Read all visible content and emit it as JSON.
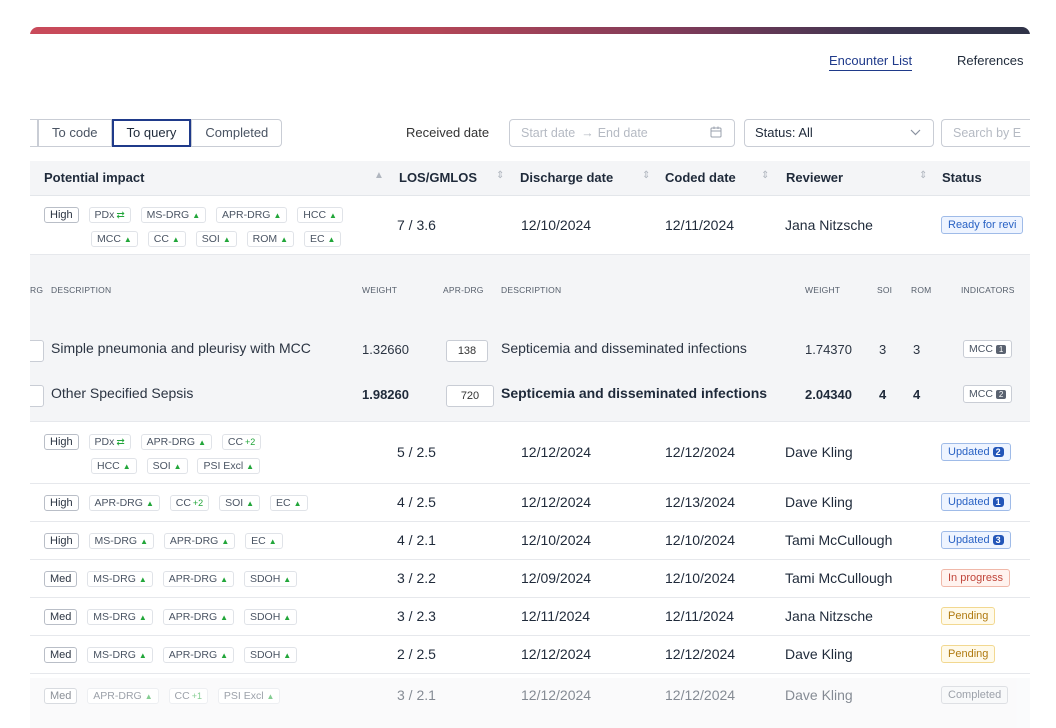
{
  "nav": {
    "encounter_list": "Encounter List",
    "references": "References"
  },
  "filters": {
    "tabs": [
      "To code",
      "To query",
      "Completed"
    ],
    "active_tab": "To query",
    "received_date_label": "Received date",
    "start_placeholder": "Start date",
    "end_placeholder": "End date",
    "status_value": "Status: All",
    "search_placeholder": "Search by E"
  },
  "columns": {
    "impact": "Potential impact",
    "los": "LOS/GMLOS",
    "discharge": "Discharge date",
    "coded": "Coded date",
    "reviewer": "Reviewer",
    "status": "Status"
  },
  "rows": [
    {
      "level": "High",
      "line1": [
        "PDx",
        "MS-DRG",
        "APR-DRG",
        "HCC"
      ],
      "line2": [
        "MCC",
        "CC",
        "SOI",
        "ROM",
        "EC"
      ],
      "los": "7 / 3.6",
      "discharge": "12/10/2024",
      "coded": "12/11/2024",
      "reviewer": "Jana Nitzsche",
      "status": "Ready for revi"
    },
    {
      "level": "High",
      "line1": [
        "PDx",
        "APR-DRG",
        "CC +2"
      ],
      "line2": [
        "HCC",
        "SOI",
        "PSI Excl"
      ],
      "los": "5 / 2.5",
      "discharge": "12/12/2024",
      "coded": "12/12/2024",
      "reviewer": "Dave Kling",
      "status": "Updated",
      "status_count": "2"
    },
    {
      "level": "High",
      "line1": [
        "APR-DRG",
        "CC +2",
        "SOI",
        "EC"
      ],
      "los": "4 / 2.5",
      "discharge": "12/12/2024",
      "coded": "12/13/2024",
      "reviewer": "Dave Kling",
      "status": "Updated",
      "status_count": "1"
    },
    {
      "level": "High",
      "line1": [
        "MS-DRG",
        "APR-DRG",
        "EC"
      ],
      "los": "4 / 2.1",
      "discharge": "12/10/2024",
      "coded": "12/10/2024",
      "reviewer": "Tami McCullough",
      "status": "Updated",
      "status_count": "3"
    },
    {
      "level": "Med",
      "line1": [
        "MS-DRG",
        "APR-DRG",
        "SDOH"
      ],
      "los": "3 / 2.2",
      "discharge": "12/09/2024",
      "coded": "12/10/2024",
      "reviewer": "Tami McCullough",
      "status": "In progress"
    },
    {
      "level": "Med",
      "line1": [
        "MS-DRG",
        "APR-DRG",
        "SDOH"
      ],
      "los": "3 / 2.3",
      "discharge": "12/11/2024",
      "coded": "12/11/2024",
      "reviewer": "Jana Nitzsche",
      "status": "Pending"
    },
    {
      "level": "Med",
      "line1": [
        "MS-DRG",
        "APR-DRG",
        "SDOH"
      ],
      "los": "2 / 2.5",
      "discharge": "12/12/2024",
      "coded": "12/12/2024",
      "reviewer": "Dave Kling",
      "status": "Pending"
    },
    {
      "level": "Med",
      "line1": [
        "APR-DRG",
        "CC +1",
        "PSI Excl"
      ],
      "los": "3 / 2.1",
      "discharge": "12/12/2024",
      "coded": "12/12/2024",
      "reviewer": "Dave Kling",
      "status": "Completed"
    }
  ],
  "expansion": {
    "headers": {
      "rg": "RG",
      "description": "DESCRIPTION",
      "weight": "WEIGHT",
      "apr_drg": "APR-DRG",
      "description2": "DESCRIPTION",
      "weight2": "WEIGHT",
      "soi": "SOI",
      "rom": "ROM",
      "indicators": "INDICATORS"
    },
    "original": {
      "description": "Simple pneumonia and pleurisy with MCC",
      "weight": "1.32660",
      "apr_drg": "138",
      "apr_description": "Septicemia and disseminated infections",
      "apr_weight": "1.74370",
      "soi": "3",
      "rom": "3",
      "indicator": "MCC",
      "indicator_count": "1"
    },
    "proposed": {
      "description": "Other Specified Sepsis",
      "weight": "1.98260",
      "apr_drg": "720",
      "apr_description": "Septicemia and disseminated infections",
      "apr_weight": "2.04340",
      "soi": "4",
      "rom": "4",
      "indicator": "MCC",
      "indicator_count": "2"
    }
  }
}
